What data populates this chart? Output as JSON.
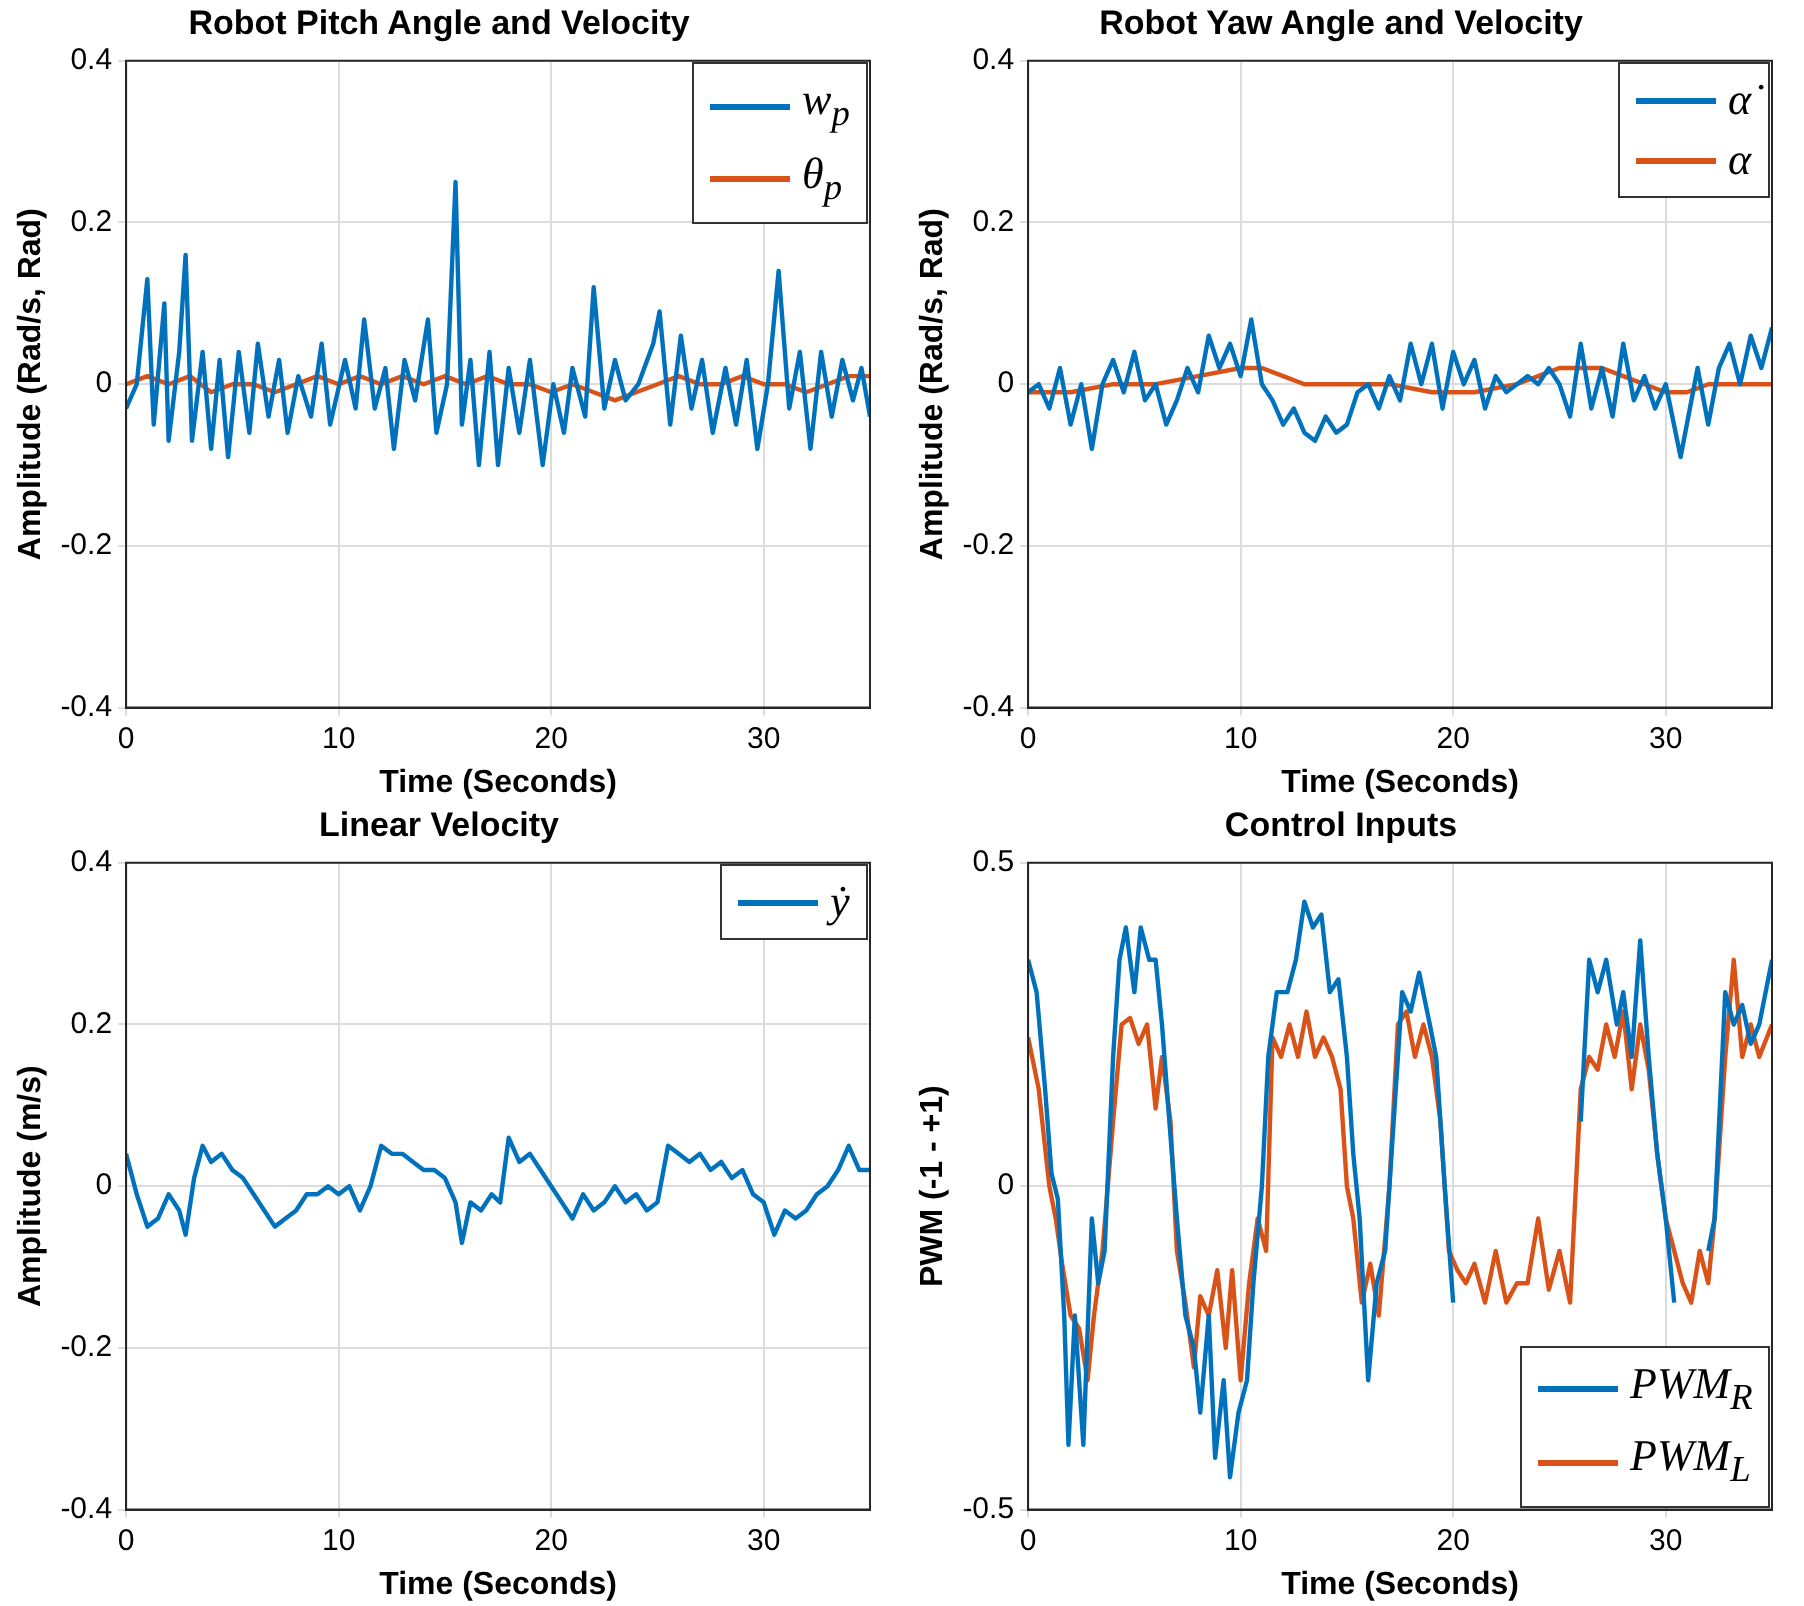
{
  "chart_data": [
    {
      "type": "line",
      "title": "Robot Pitch Angle and Velocity",
      "xlabel": "Time (Seconds)",
      "ylabel": "Amplitude (Rad/s, Rad)",
      "xlim": [
        0,
        35
      ],
      "xticks": [
        0,
        10,
        20,
        30
      ],
      "ylim": [
        -0.4,
        0.4
      ],
      "yticks": [
        -0.4,
        -0.2,
        0,
        0.2,
        0.4
      ],
      "grid": true,
      "legend": "top right",
      "series": [
        {
          "name": "w$_{p}$",
          "color": "#0072bd",
          "x": [
            0,
            0.5,
            1,
            1.3,
            1.8,
            2,
            2.5,
            2.8,
            3.1,
            3.6,
            4,
            4.4,
            4.8,
            5.3,
            5.8,
            6.2,
            6.7,
            7.2,
            7.6,
            8.1,
            8.7,
            9.2,
            9.6,
            10.3,
            10.8,
            11.2,
            11.7,
            12.2,
            12.6,
            13.1,
            13.6,
            14.2,
            14.6,
            15.1,
            15.5,
            15.8,
            16.2,
            16.6,
            17.1,
            17.5,
            18,
            18.5,
            19,
            19.6,
            20.1,
            20.6,
            21,
            21.6,
            22,
            22.5,
            23,
            23.5,
            24.1,
            24.8,
            25.1,
            25.6,
            26.1,
            26.6,
            27.1,
            27.6,
            28.2,
            28.7,
            29.2,
            29.7,
            30.2,
            30.7,
            31.2,
            31.7,
            32.2,
            32.7,
            33.2,
            33.7,
            34.2,
            34.6,
            35
          ],
          "values": [
            -0.03,
            0,
            0.13,
            -0.05,
            0.1,
            -0.07,
            0.04,
            0.16,
            -0.07,
            0.04,
            -0.08,
            0.03,
            -0.09,
            0.04,
            -0.06,
            0.05,
            -0.04,
            0.03,
            -0.06,
            0.01,
            -0.04,
            0.05,
            -0.05,
            0.03,
            -0.03,
            0.08,
            -0.03,
            0.02,
            -0.08,
            0.03,
            -0.02,
            0.08,
            -0.06,
            0,
            0.25,
            -0.05,
            0.03,
            -0.1,
            0.04,
            -0.1,
            0.02,
            -0.06,
            0.03,
            -0.1,
            0,
            -0.06,
            0.02,
            -0.04,
            0.12,
            -0.03,
            0.03,
            -0.02,
            0,
            0.05,
            0.09,
            -0.05,
            0.06,
            -0.03,
            0.03,
            -0.06,
            0.02,
            -0.05,
            0.03,
            -0.08,
            0,
            0.14,
            -0.03,
            0.04,
            -0.08,
            0.04,
            -0.04,
            0.03,
            -0.02,
            0.02,
            -0.04
          ]
        },
        {
          "name": "θ$_{p}$",
          "color": "#d95319",
          "x": [
            0,
            1,
            2,
            3,
            4,
            5,
            6,
            7,
            8,
            9,
            10,
            11,
            12,
            13,
            14,
            15,
            16,
            17,
            18,
            19,
            20,
            21,
            22,
            23,
            24,
            25,
            26,
            27,
            28,
            29,
            30,
            31,
            32,
            33,
            34,
            35
          ],
          "values": [
            0,
            0.01,
            0,
            0.01,
            -0.01,
            0,
            0,
            -0.01,
            0,
            0.01,
            0,
            0.01,
            0,
            0.01,
            0,
            0.01,
            0,
            0.01,
            0,
            0,
            -0.01,
            0,
            -0.01,
            -0.02,
            -0.01,
            0,
            0.01,
            0,
            0,
            0.01,
            0,
            0,
            -0.01,
            0,
            0.01,
            0.01
          ]
        }
      ]
    },
    {
      "type": "line",
      "title": "Robot Yaw Angle and Velocity",
      "xlabel": "Time (Seconds)",
      "ylabel": "Amplitude (Rad/s, Rad)",
      "xlim": [
        0,
        35
      ],
      "xticks": [
        0,
        10,
        20,
        30
      ],
      "ylim": [
        -0.4,
        0.4
      ],
      "yticks": [
        -0.4,
        -0.2,
        0,
        0.2,
        0.4
      ],
      "grid": true,
      "legend": "top right",
      "series": [
        {
          "name": "α̇",
          "color": "#0072bd",
          "x": [
            0,
            0.5,
            1,
            1.5,
            2,
            2.5,
            3,
            3.5,
            4,
            4.5,
            5,
            5.5,
            6,
            6.5,
            7,
            7.5,
            8,
            8.5,
            9,
            9.5,
            10,
            10.5,
            11,
            11.5,
            12,
            12.5,
            13,
            13.5,
            14,
            14.5,
            15,
            15.5,
            16,
            16.5,
            17,
            17.5,
            18,
            18.5,
            19,
            19.5,
            20,
            20.5,
            21,
            21.5,
            22,
            22.5,
            23,
            23.5,
            24,
            24.5,
            25,
            25.5,
            26,
            26.5,
            27,
            27.5,
            28,
            28.5,
            29,
            29.5,
            30,
            30.7,
            31.5,
            32,
            32.5,
            33,
            33.5,
            34,
            34.5,
            35
          ],
          "values": [
            -0.01,
            0,
            -0.03,
            0.02,
            -0.05,
            0,
            -0.08,
            0,
            0.03,
            -0.01,
            0.04,
            -0.02,
            0,
            -0.05,
            -0.02,
            0.02,
            -0.01,
            0.06,
            0.02,
            0.05,
            0.01,
            0.08,
            0,
            -0.02,
            -0.05,
            -0.03,
            -0.06,
            -0.07,
            -0.04,
            -0.06,
            -0.05,
            -0.01,
            0,
            -0.03,
            0.01,
            -0.02,
            0.05,
            0,
            0.05,
            -0.03,
            0.04,
            0,
            0.03,
            -0.03,
            0.01,
            -0.01,
            0,
            0.01,
            0,
            0.02,
            0,
            -0.04,
            0.05,
            -0.03,
            0.02,
            -0.04,
            0.05,
            -0.02,
            0.01,
            -0.03,
            0,
            -0.09,
            0.02,
            -0.05,
            0.02,
            0.05,
            0,
            0.06,
            0.02,
            0.07
          ]
        },
        {
          "name": "α",
          "color": "#d95319",
          "x": [
            0,
            2,
            4,
            6,
            8,
            10,
            11,
            12,
            13,
            15,
            17,
            19,
            21,
            23,
            24,
            25,
            26,
            27,
            28,
            29,
            30,
            31,
            32,
            33,
            35
          ],
          "values": [
            -0.01,
            -0.01,
            0,
            0,
            0.01,
            0.02,
            0.02,
            0.01,
            0,
            0,
            0,
            -0.01,
            -0.01,
            0,
            0.01,
            0.02,
            0.02,
            0.02,
            0.01,
            0,
            -0.01,
            -0.01,
            0,
            0,
            0
          ]
        }
      ]
    },
    {
      "type": "line",
      "title": "Linear Velocity",
      "xlabel": "Time (Seconds)",
      "ylabel": "Amplitude (m/s)",
      "xlim": [
        0,
        35
      ],
      "xticks": [
        0,
        10,
        20,
        30
      ],
      "ylim": [
        -0.4,
        0.4
      ],
      "yticks": [
        -0.4,
        -0.2,
        0,
        0.2,
        0.4
      ],
      "grid": true,
      "legend": "top right",
      "series": [
        {
          "name": "ẏ",
          "color": "#0072bd",
          "x": [
            0,
            0.5,
            1,
            1.5,
            2,
            2.5,
            2.8,
            3.2,
            3.6,
            4,
            4.5,
            5,
            5.5,
            6,
            6.5,
            7,
            7.5,
            8,
            8.5,
            9,
            9.5,
            10,
            10.5,
            11,
            11.5,
            12,
            12.5,
            13,
            13.5,
            14,
            14.5,
            15,
            15.5,
            15.8,
            16.2,
            16.7,
            17.2,
            17.6,
            18,
            18.5,
            19,
            19.5,
            20,
            20.5,
            21,
            21.5,
            22,
            22.5,
            23,
            23.5,
            24,
            24.5,
            25,
            25.5,
            26,
            26.5,
            27,
            27.5,
            28,
            28.5,
            29,
            29.5,
            30,
            30.5,
            31,
            31.5,
            32,
            32.5,
            33,
            33.5,
            34,
            34.5,
            35
          ],
          "values": [
            0.04,
            -0.01,
            -0.05,
            -0.04,
            -0.01,
            -0.03,
            -0.06,
            0.01,
            0.05,
            0.03,
            0.04,
            0.02,
            0.01,
            -0.01,
            -0.03,
            -0.05,
            -0.04,
            -0.03,
            -0.01,
            -0.01,
            0,
            -0.01,
            0,
            -0.03,
            0,
            0.05,
            0.04,
            0.04,
            0.03,
            0.02,
            0.02,
            0.01,
            -0.02,
            -0.07,
            -0.02,
            -0.03,
            -0.01,
            -0.02,
            0.06,
            0.03,
            0.04,
            0.02,
            0,
            -0.02,
            -0.04,
            -0.01,
            -0.03,
            -0.02,
            0,
            -0.02,
            -0.01,
            -0.03,
            -0.02,
            0.05,
            0.04,
            0.03,
            0.04,
            0.02,
            0.03,
            0.01,
            0.02,
            -0.01,
            -0.02,
            -0.06,
            -0.03,
            -0.04,
            -0.03,
            -0.01,
            0,
            0.02,
            0.05,
            0.02,
            0.02
          ]
        }
      ]
    },
    {
      "type": "line",
      "title": "Control Inputs",
      "xlabel": "Time (Seconds)",
      "ylabel": "PWM (-1 - +1)",
      "xlim": [
        0,
        35
      ],
      "xticks": [
        0,
        10,
        20,
        30
      ],
      "ylim": [
        -0.5,
        0.5
      ],
      "yticks": [
        -0.5,
        0,
        0.5
      ],
      "grid": true,
      "legend": "bottom right",
      "series": [
        {
          "name": "PWM$_{R}$",
          "color": "#0072bd",
          "x": [
            0,
            0.4,
            0.8,
            1.1,
            1.4,
            1.7,
            1.9,
            2.2,
            2.6,
            3,
            3.3,
            3.6,
            4,
            4.3,
            4.6,
            5,
            5.3,
            5.7,
            6,
            6.3,
            6.6,
            7,
            7.4,
            7.8,
            8.1,
            8.5,
            8.8,
            9.2,
            9.5,
            9.9,
            10.3,
            10.6,
            11,
            11.3,
            11.7,
            12.2,
            12.6,
            13,
            13.4,
            13.8,
            14.2,
            14.6,
            15,
            15.3,
            15.6,
            16,
            16.4,
            16.8,
            17.3,
            17.6,
            18,
            18.4,
            18.9,
            19.2,
            19.6,
            20,
            20.5,
            21,
            21.5,
            22,
            22.5,
            23,
            23.6,
            24.2,
            24.8,
            25.5,
            26,
            26.4,
            26.8,
            27.2,
            27.7,
            28,
            28.4,
            28.8,
            29.2,
            29.6,
            30,
            30.4,
            30.8,
            31.2,
            31.6,
            32,
            32.3,
            32.8,
            33.2,
            33.6,
            34,
            34.4,
            35
          ],
          "values": [
            0.35,
            0.3,
            0.15,
            0.02,
            -0.02,
            -0.2,
            -0.4,
            -0.2,
            -0.4,
            -0.05,
            -0.15,
            -0.1,
            0.2,
            0.35,
            0.4,
            0.3,
            0.4,
            0.35,
            0.35,
            0.25,
            0.12,
            -0.05,
            -0.2,
            -0.25,
            -0.35,
            -0.2,
            -0.42,
            -0.3,
            -0.45,
            -0.35,
            -0.3,
            -0.15,
            0,
            0.2,
            0.3,
            0.3,
            0.35,
            0.44,
            0.4,
            0.42,
            0.3,
            0.32,
            0.2,
            0.05,
            -0.05,
            -0.3,
            -0.15,
            -0.1,
            0.15,
            0.3,
            0.27,
            0.33,
            0.25,
            0.2,
            0,
            -0.18,
            null,
            null,
            null,
            null,
            null,
            null,
            null,
            null,
            null,
            null,
            0.1,
            0.35,
            0.3,
            0.35,
            0.25,
            0.3,
            0.2,
            0.38,
            0.2,
            0.05,
            -0.05,
            -0.18,
            null,
            null,
            null,
            -0.1,
            -0.05,
            0.3,
            0.25,
            0.28,
            0.22,
            0.25,
            0.35
          ]
        },
        {
          "name": "PWM$_{L}$",
          "color": "#d95319",
          "x": [
            0,
            0.5,
            1,
            1.3,
            1.6,
            2,
            2.4,
            2.8,
            3.1,
            3.5,
            4,
            4.4,
            4.8,
            5.2,
            5.6,
            6,
            6.3,
            6.7,
            7,
            7.4,
            7.8,
            8.1,
            8.5,
            8.9,
            9.3,
            9.6,
            10,
            10.4,
            10.8,
            11.2,
            11.5,
            11.9,
            12.3,
            12.7,
            13.1,
            13.5,
            13.9,
            14.3,
            14.7,
            15,
            15.3,
            15.7,
            16.1,
            16.5,
            17,
            17.4,
            17.8,
            18.2,
            18.6,
            19,
            19.4,
            19.8,
            20.2,
            20.6,
            21,
            21.5,
            22,
            22.5,
            23,
            23.5,
            24,
            24.5,
            25,
            25.5,
            26,
            26.4,
            26.8,
            27.2,
            27.6,
            28,
            28.4,
            28.8,
            29.2,
            29.6,
            30,
            30.4,
            30.8,
            31.2,
            31.6,
            32,
            32.3,
            32.8,
            33.2,
            33.6,
            34,
            34.4,
            35
          ],
          "values": [
            0.23,
            0.15,
            0,
            -0.05,
            -0.12,
            -0.2,
            -0.22,
            -0.3,
            -0.2,
            -0.1,
            0.1,
            0.25,
            0.26,
            0.22,
            0.25,
            0.12,
            0.2,
            0.1,
            -0.1,
            -0.18,
            -0.28,
            -0.17,
            -0.2,
            -0.13,
            -0.25,
            -0.13,
            -0.3,
            -0.15,
            -0.05,
            -0.1,
            0.23,
            0.2,
            0.25,
            0.2,
            0.27,
            0.2,
            0.23,
            0.2,
            0.15,
            0,
            -0.05,
            -0.18,
            -0.12,
            -0.2,
            0,
            0.25,
            0.27,
            0.2,
            0.25,
            0.2,
            0.1,
            -0.1,
            -0.13,
            -0.15,
            -0.12,
            -0.18,
            -0.1,
            -0.18,
            -0.15,
            -0.15,
            -0.05,
            -0.16,
            -0.1,
            -0.18,
            0.15,
            0.2,
            0.18,
            0.25,
            0.2,
            0.27,
            0.15,
            0.25,
            0.18,
            0.05,
            -0.05,
            -0.1,
            -0.15,
            -0.18,
            -0.1,
            -0.15,
            -0.05,
            0.2,
            0.35,
            0.2,
            0.25,
            0.2,
            0.25
          ]
        }
      ]
    }
  ]
}
